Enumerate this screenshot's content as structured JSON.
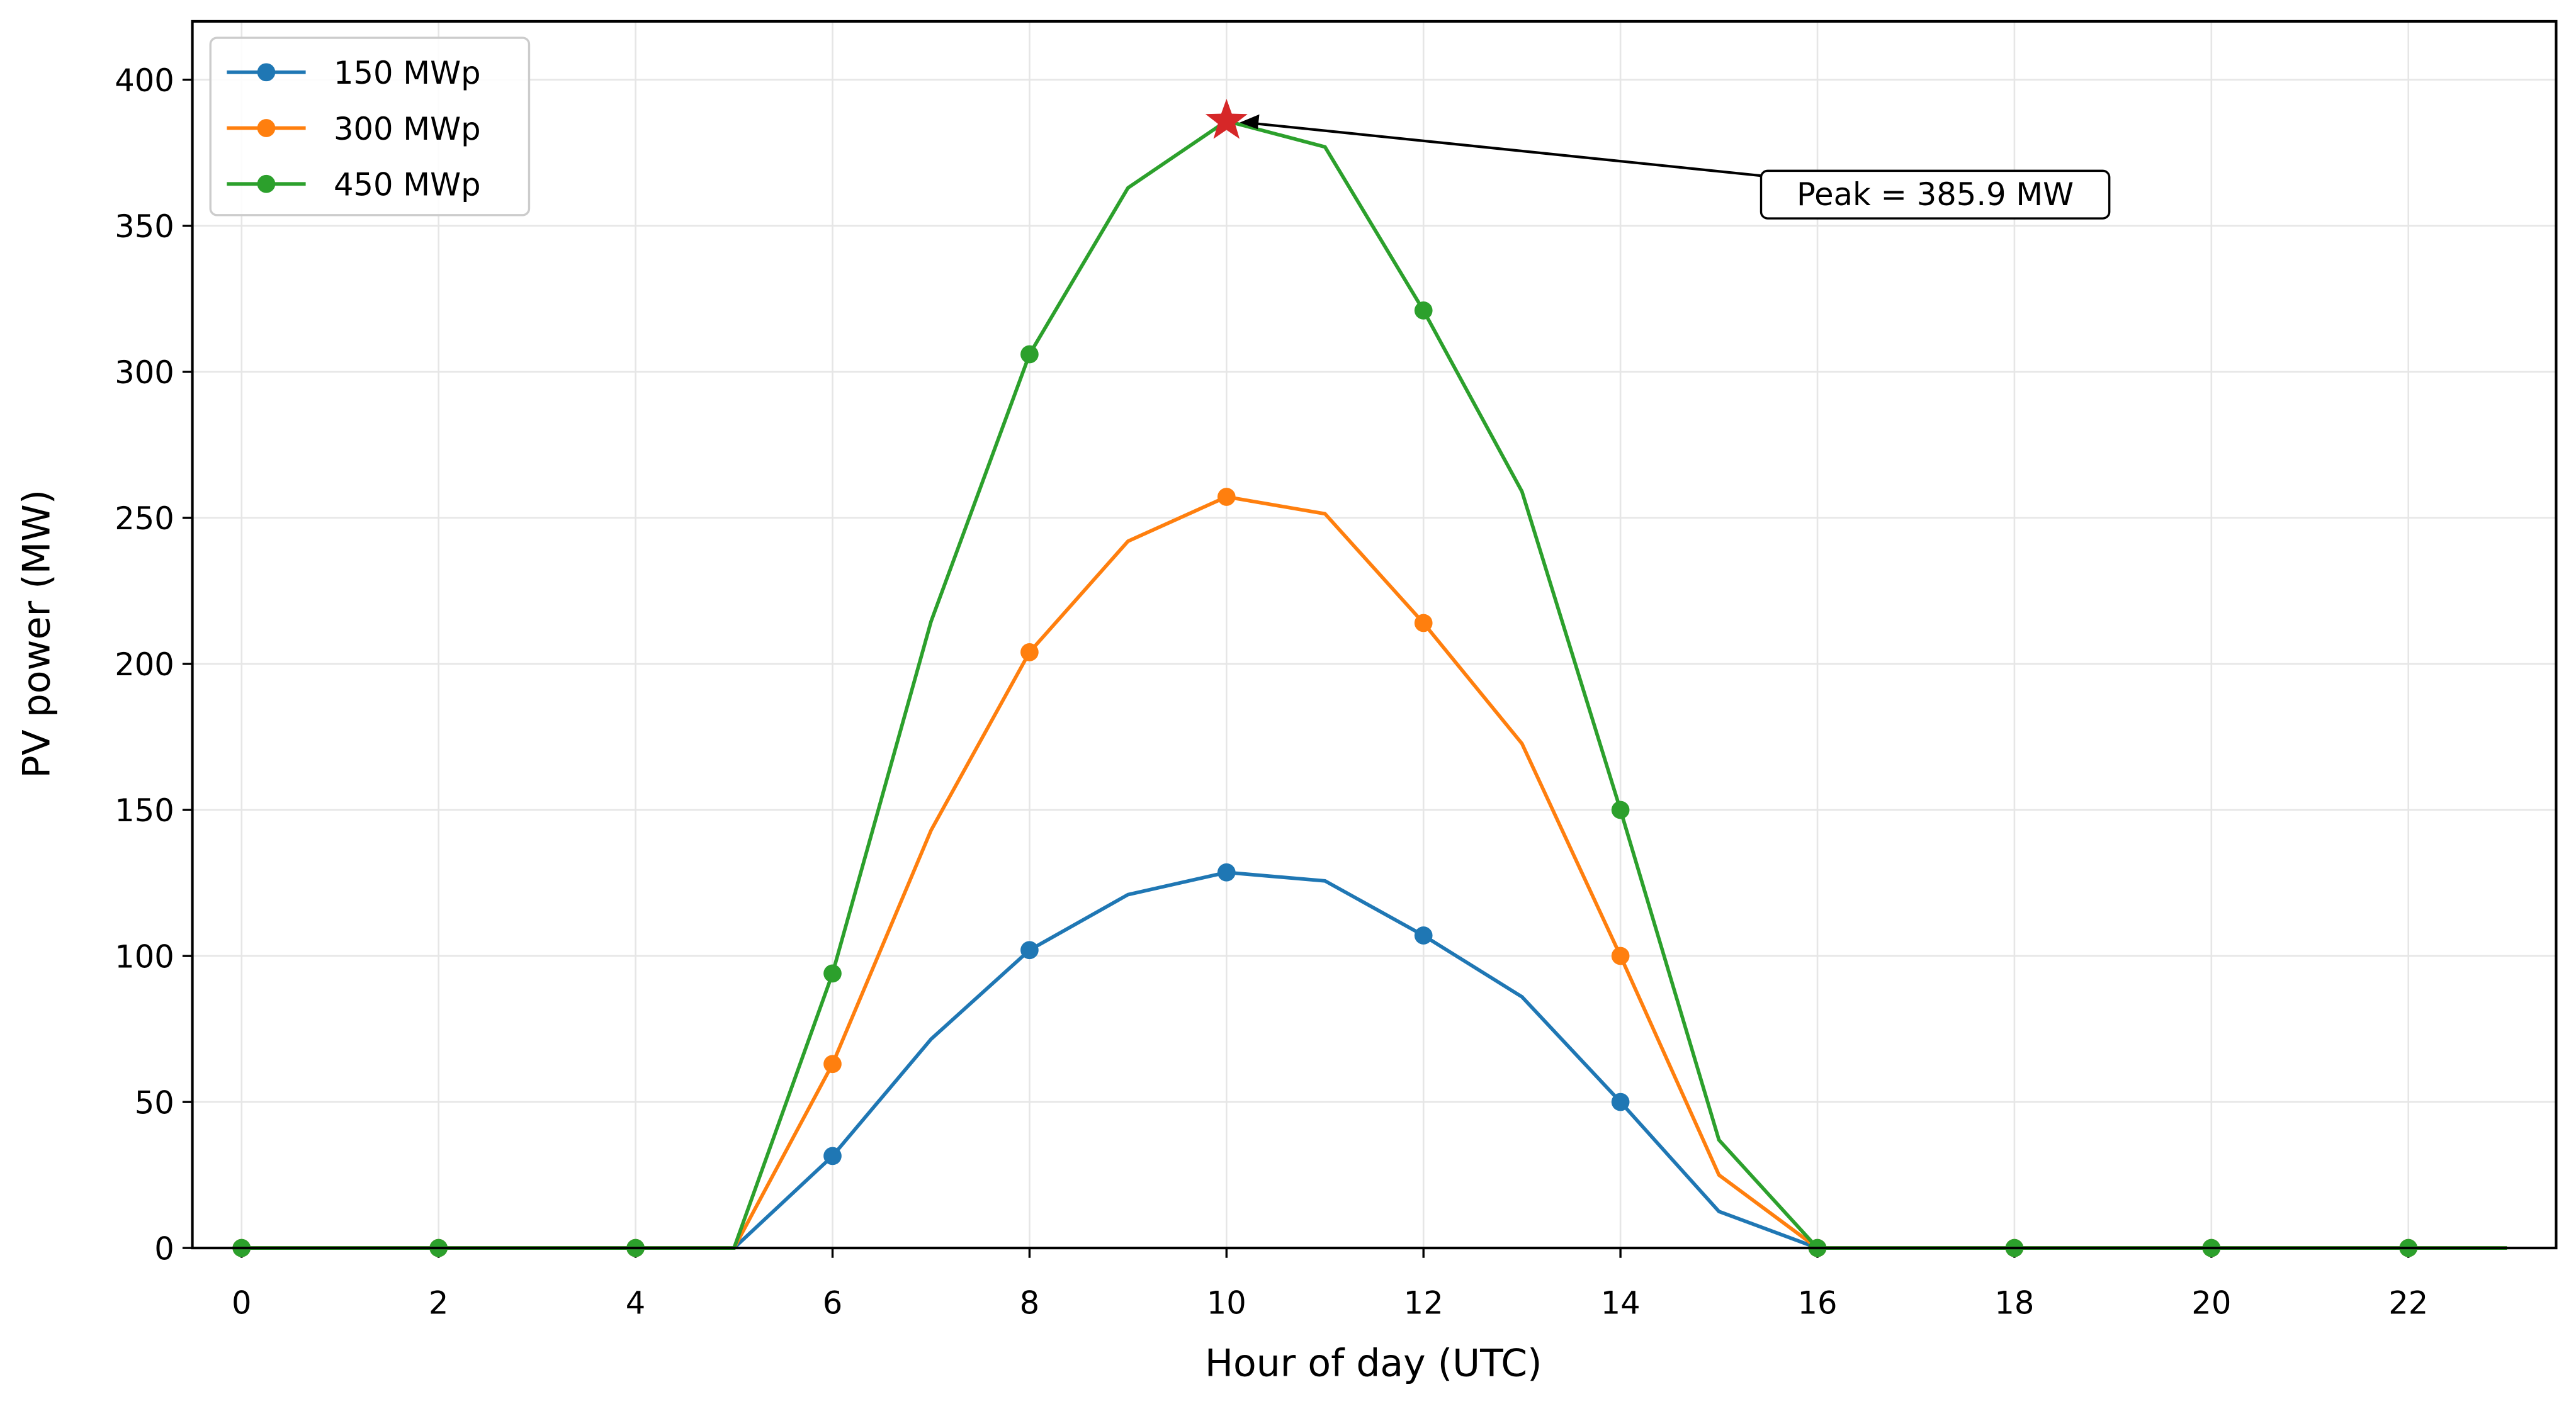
{
  "chart_data": {
    "type": "line",
    "x_label": "Hour of day (UTC)",
    "y_label": "PV power (MW)",
    "x": [
      0,
      1,
      2,
      3,
      4,
      5,
      6,
      7,
      8,
      9,
      10,
      11,
      12,
      13,
      14,
      15,
      16,
      17,
      18,
      19,
      20,
      21,
      22,
      23
    ],
    "series": [
      {
        "name": "150 MWp",
        "color": "#1f77b4",
        "values": [
          0,
          0,
          0,
          0,
          0,
          0,
          31.5,
          71.5,
          102,
          121,
          128.6,
          125.7,
          107,
          86,
          50,
          12.5,
          0,
          0,
          0,
          0,
          0,
          0,
          0,
          0
        ]
      },
      {
        "name": "300 MWp",
        "color": "#ff7f0e",
        "values": [
          0,
          0,
          0,
          0,
          0,
          0,
          63,
          143,
          204,
          242,
          257.2,
          251.4,
          214,
          172.7,
          100,
          25,
          0,
          0,
          0,
          0,
          0,
          0,
          0,
          0
        ]
      },
      {
        "name": "450 MWp",
        "color": "#2ca02c",
        "values": [
          0,
          0,
          0,
          0,
          0,
          0,
          94,
          214.5,
          306,
          363,
          385.9,
          377,
          321,
          259,
          150,
          37,
          0,
          0,
          0,
          0,
          0,
          0,
          0,
          0
        ]
      }
    ],
    "markevery": 2,
    "xlim": [
      -0.5,
      23.5
    ],
    "xticks": [
      0,
      2,
      4,
      6,
      8,
      10,
      12,
      14,
      16,
      18,
      20,
      22
    ],
    "ylim": [
      0,
      420
    ],
    "yticks": [
      0,
      50,
      100,
      150,
      200,
      250,
      300,
      350,
      400
    ],
    "grid": true,
    "legend": "upper left",
    "annotation": {
      "text": "Peak = 385.9 MW",
      "x": 10,
      "y": 385.9,
      "color": "#d62728"
    }
  }
}
